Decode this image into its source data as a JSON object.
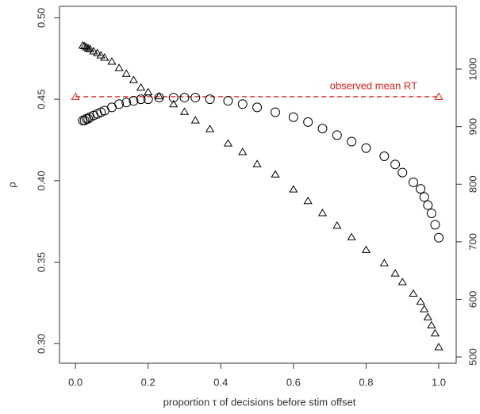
{
  "chart_data": {
    "type": "scatter",
    "xlabel": "proportion τ of decisions before stim offset",
    "ylabel": "ρ",
    "x": [
      0.02,
      0.025,
      0.03,
      0.035,
      0.04,
      0.05,
      0.06,
      0.07,
      0.08,
      0.1,
      0.12,
      0.14,
      0.16,
      0.18,
      0.2,
      0.23,
      0.27,
      0.3,
      0.33,
      0.37,
      0.42,
      0.46,
      0.5,
      0.55,
      0.6,
      0.64,
      0.68,
      0.72,
      0.76,
      0.8,
      0.85,
      0.88,
      0.9,
      0.93,
      0.95,
      0.96,
      0.97,
      0.98,
      0.99,
      1.0
    ],
    "series": [
      {
        "marker": "circle",
        "color": "#000000",
        "axis": "y",
        "values": [
          0.437,
          0.437,
          0.438,
          0.438,
          0.439,
          0.44,
          0.441,
          0.442,
          0.443,
          0.445,
          0.447,
          0.448,
          0.449,
          0.45,
          0.45,
          0.451,
          0.451,
          0.451,
          0.451,
          0.45,
          0.449,
          0.447,
          0.445,
          0.442,
          0.439,
          0.436,
          0.432,
          0.428,
          0.424,
          0.42,
          0.415,
          0.41,
          0.405,
          0.399,
          0.395,
          0.39,
          0.385,
          0.38,
          0.373,
          0.365
        ]
      },
      {
        "marker": "triangle",
        "color": "#000000",
        "axis": "y2",
        "values": [
          1041,
          1040,
          1038,
          1036,
          1035,
          1031,
          1028,
          1024,
          1020,
          1013,
          1002,
          992,
          981,
          968,
          960,
          953,
          939,
          926,
          911,
          896,
          871,
          856,
          835,
          817,
          791,
          771,
          750,
          728,
          708,
          686,
          663,
          645,
          630,
          610,
          596,
          583,
          569,
          555,
          541,
          517
        ]
      }
    ],
    "reference": {
      "label": "observed mean RT",
      "value": 952,
      "axis": "y2",
      "x": [
        0,
        1
      ],
      "color": "#e0201b"
    },
    "xlim": [
      -0.044,
      1.048
    ],
    "xticks": [
      {
        "value": 0,
        "label": "0.0"
      },
      0.2,
      0.4,
      0.6,
      0.8,
      {
        "value": 1,
        "label": "1.0"
      }
    ],
    "ylim": [
      0.288,
      0.507
    ],
    "yticks": [
      {
        "value": 0.3,
        "label": "0.30"
      },
      0.35,
      {
        "value": 0.4,
        "label": "0.40"
      },
      0.45,
      {
        "value": 0.5,
        "label": "0.50"
      }
    ],
    "y2lim": [
      489,
      1109
    ],
    "y2ticks": [
      500,
      600,
      700,
      800,
      900,
      1000
    ]
  }
}
